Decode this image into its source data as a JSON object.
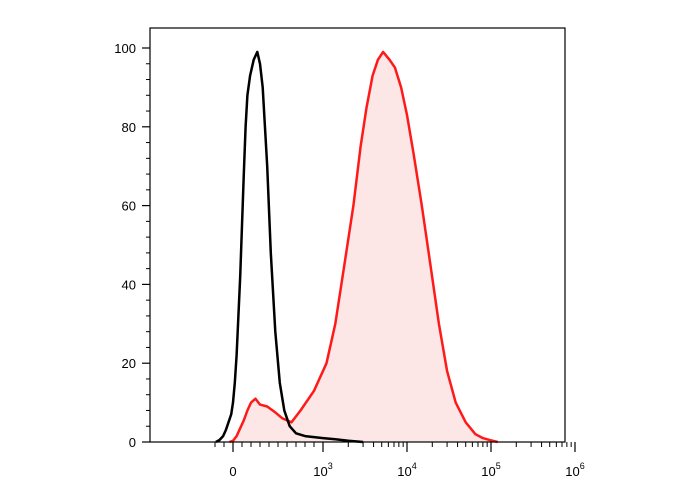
{
  "chart_data": {
    "type": "area",
    "title": "",
    "xlabel": "",
    "ylabel": "",
    "x_scale": "biexponential",
    "xlim": [
      -300,
      1000000
    ],
    "ylim": [
      0,
      100
    ],
    "x_tick_labels": [
      {
        "value": 0,
        "base": "0",
        "exp": ""
      },
      {
        "value": 1000,
        "base": "10",
        "exp": "3"
      },
      {
        "value": 10000,
        "base": "10",
        "exp": "4"
      },
      {
        "value": 100000,
        "base": "10",
        "exp": "5"
      },
      {
        "value": 1000000,
        "base": "10",
        "exp": "6"
      }
    ],
    "y_tick_labels": [
      {
        "value": 0,
        "label": "0"
      },
      {
        "value": 20,
        "label": "20"
      },
      {
        "value": 40,
        "label": "40"
      },
      {
        "value": 60,
        "label": "60"
      },
      {
        "value": 80,
        "label": "80"
      },
      {
        "value": 100,
        "label": "100"
      }
    ],
    "series": [
      {
        "color": "#000000",
        "fill": "none",
        "points": [
          [
            -190,
            0
          ],
          [
            -150,
            0.5
          ],
          [
            -110,
            1.5
          ],
          [
            -80,
            3
          ],
          [
            -50,
            5
          ],
          [
            -20,
            7
          ],
          [
            0,
            10
          ],
          [
            20,
            15
          ],
          [
            40,
            22
          ],
          [
            60,
            32
          ],
          [
            80,
            42
          ],
          [
            100,
            55
          ],
          [
            120,
            68
          ],
          [
            140,
            80
          ],
          [
            160,
            88
          ],
          [
            190,
            93
          ],
          [
            230,
            97
          ],
          [
            270,
            99
          ],
          [
            300,
            96
          ],
          [
            330,
            90
          ],
          [
            380,
            70
          ],
          [
            420,
            48
          ],
          [
            470,
            28
          ],
          [
            520,
            15
          ],
          [
            570,
            8
          ],
          [
            630,
            4
          ],
          [
            700,
            2.2
          ],
          [
            800,
            1.5
          ],
          [
            1000,
            1
          ],
          [
            1400,
            0.7
          ],
          [
            2000,
            0.3
          ],
          [
            3000,
            0
          ]
        ]
      },
      {
        "color": "#ff1a1a",
        "fill": "#fce6e6",
        "points": [
          [
            -40,
            0
          ],
          [
            0,
            0.3
          ],
          [
            40,
            1.5
          ],
          [
            80,
            3.5
          ],
          [
            120,
            5.5
          ],
          [
            160,
            8
          ],
          [
            200,
            10
          ],
          [
            250,
            11
          ],
          [
            300,
            9.5
          ],
          [
            380,
            9
          ],
          [
            470,
            7.5
          ],
          [
            550,
            6
          ],
          [
            650,
            5
          ],
          [
            750,
            8
          ],
          [
            900,
            13
          ],
          [
            1100,
            20
          ],
          [
            1400,
            30
          ],
          [
            1800,
            45
          ],
          [
            2300,
            60
          ],
          [
            2800,
            75
          ],
          [
            3300,
            85
          ],
          [
            3900,
            93
          ],
          [
            4500,
            97
          ],
          [
            5200,
            99
          ],
          [
            6200,
            97
          ],
          [
            7200,
            95
          ],
          [
            8500,
            90
          ],
          [
            10000,
            83
          ],
          [
            12000,
            73
          ],
          [
            15000,
            60
          ],
          [
            19000,
            45
          ],
          [
            24000,
            30
          ],
          [
            30000,
            18
          ],
          [
            38000,
            10
          ],
          [
            50000,
            5
          ],
          [
            65000,
            2
          ],
          [
            80000,
            1
          ],
          [
            100000,
            0.4
          ],
          [
            120000,
            0
          ]
        ]
      }
    ]
  }
}
